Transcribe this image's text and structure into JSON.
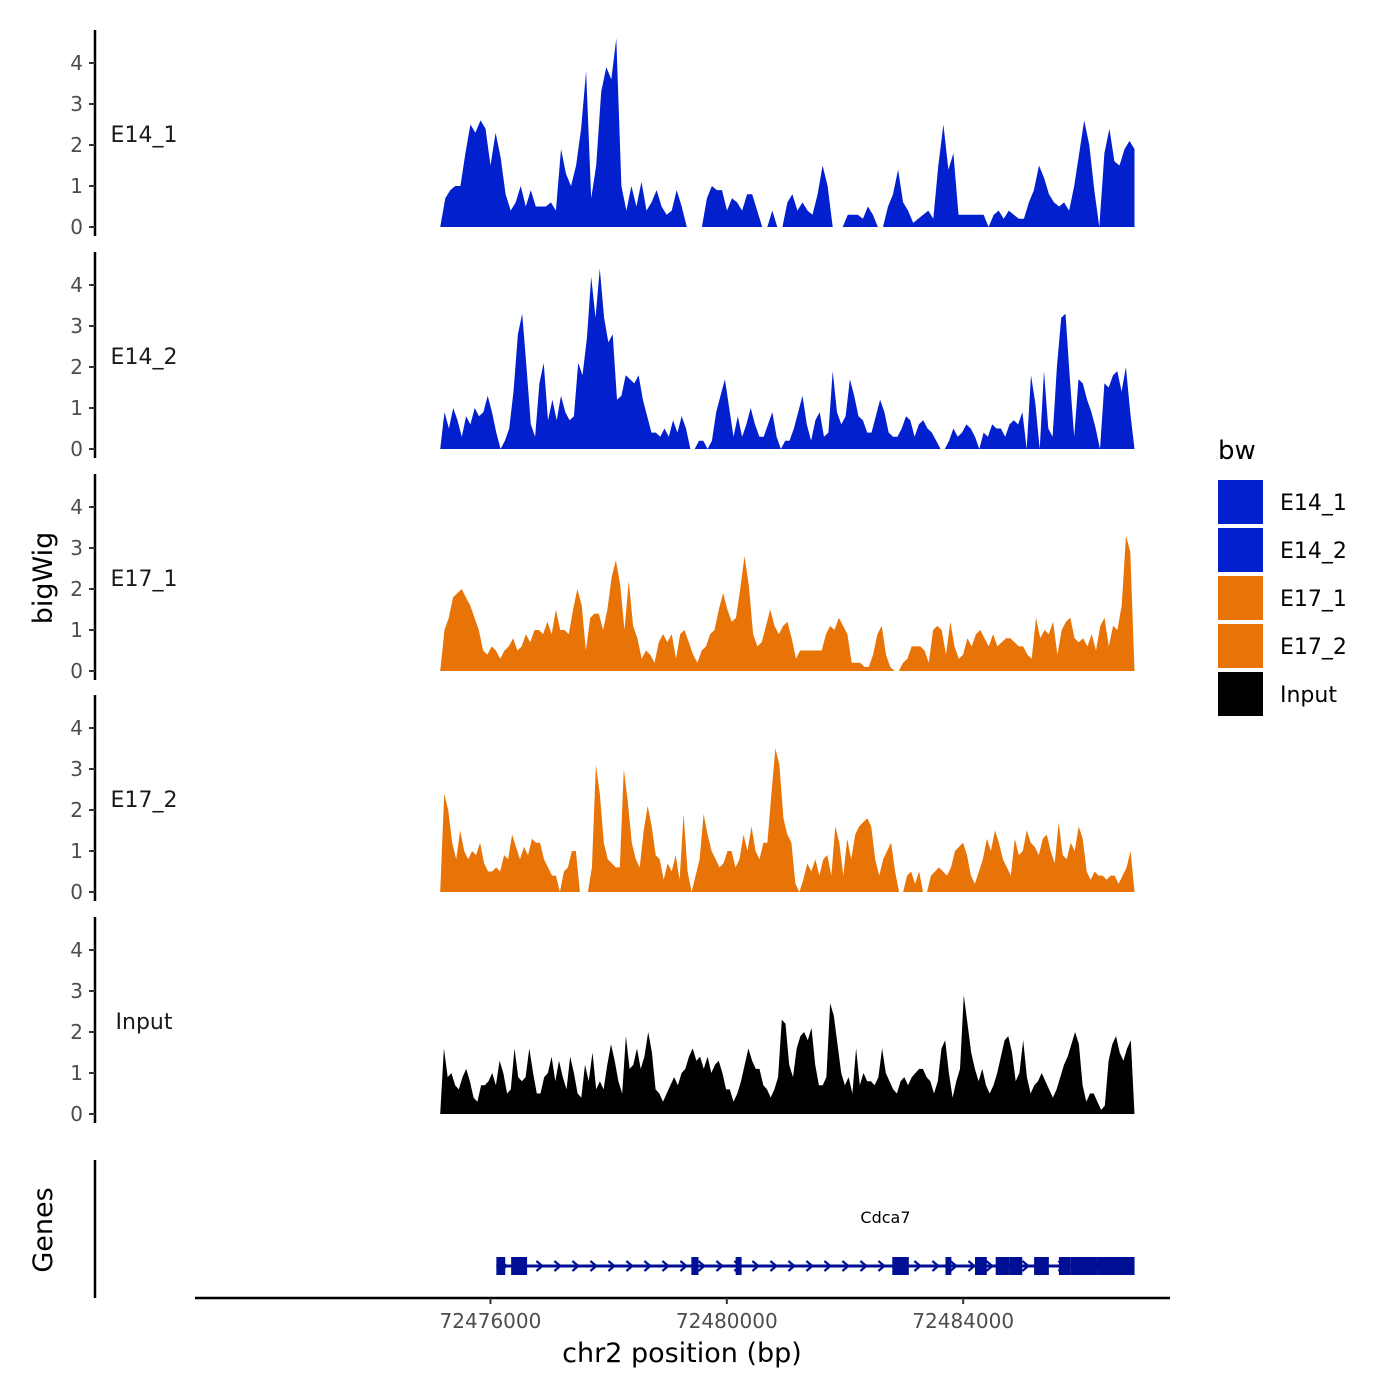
{
  "chart_data": {
    "type": "area",
    "xlabel": "chr2 position (bp)",
    "ylabel": "bigWig",
    "genes_label": "Genes",
    "xlim": [
      72471000,
      72487500
    ],
    "ylim": [
      0,
      4.8
    ],
    "x_ticks": [
      {
        "value": 72476000,
        "label": "72476000"
      },
      {
        "value": 72480000,
        "label": "72480000"
      },
      {
        "value": 72484000,
        "label": "72484000"
      }
    ],
    "y_ticks": [
      {
        "value": 0,
        "label": "0"
      },
      {
        "value": 1,
        "label": "1"
      },
      {
        "value": 2,
        "label": "2"
      },
      {
        "value": 3,
        "label": "3"
      },
      {
        "value": 4,
        "label": "4"
      }
    ],
    "data_x_range": [
      72475150,
      72486900
    ],
    "legend": {
      "title": "bw",
      "entries": [
        {
          "name": "E14_1",
          "color": "#0320cf"
        },
        {
          "name": "E14_2",
          "color": "#0320cf"
        },
        {
          "name": "E17_1",
          "color": "#e87407"
        },
        {
          "name": "E17_2",
          "color": "#e87407"
        },
        {
          "name": "Input",
          "color": "#000000"
        }
      ]
    },
    "series": [
      {
        "name": "E14_1",
        "color": "#0320cf",
        "values": [
          0,
          0.7,
          0.9,
          1.0,
          1.0,
          1.8,
          2.5,
          2.3,
          2.6,
          2.4,
          1.5,
          2.3,
          1.7,
          0.8,
          0.4,
          0.6,
          1.0,
          0.5,
          0.9,
          0.5,
          0.5,
          0.5,
          0.6,
          0.4,
          1.9,
          1.3,
          1.0,
          1.5,
          2.4,
          3.8,
          0.7,
          1.5,
          3.3,
          3.9,
          3.6,
          4.6,
          1.0,
          0.4,
          1.0,
          0.5,
          1.1,
          0.4,
          0.6,
          0.9,
          0.5,
          0.3,
          0.4,
          0.9,
          0.5,
          0,
          0,
          0,
          0,
          0.7,
          1.0,
          0.9,
          0.9,
          0.4,
          0.7,
          0.6,
          0.4,
          0.8,
          0.8,
          0.4,
          0,
          0,
          0.4,
          0,
          0,
          0.6,
          0.8,
          0.4,
          0.6,
          0.4,
          0.3,
          0.8,
          1.5,
          1.0,
          0,
          0,
          0,
          0.3,
          0.3,
          0.3,
          0.2,
          0.5,
          0.3,
          0,
          0,
          0.5,
          0.8,
          1.4,
          0.6,
          0.4,
          0.1,
          0.2,
          0.3,
          0.4,
          0.2,
          1.5,
          2.5,
          1.4,
          1.8,
          0.3,
          0.3,
          0.3,
          0.3,
          0.3,
          0.3,
          0,
          0.3,
          0.4,
          0.2,
          0.4,
          0.3,
          0.2,
          0.2,
          0.6,
          0.9,
          1.5,
          1.2,
          0.8,
          0.6,
          0.5,
          0.6,
          0.4,
          1.0,
          1.8,
          2.6,
          2.0,
          0.9,
          0,
          1.8,
          2.4,
          1.6,
          1.5,
          1.9,
          2.1,
          1.9
        ],
        "gap_below": 0.05
      },
      {
        "name": "E14_2",
        "color": "#0320cf",
        "values": [
          0,
          0.9,
          0.5,
          1.0,
          0.7,
          0.3,
          0.8,
          0.6,
          1.0,
          0.8,
          0.9,
          1.3,
          0.9,
          0.4,
          0,
          0.2,
          0.5,
          1.4,
          2.8,
          3.3,
          2.0,
          0.6,
          0.3,
          1.6,
          2.1,
          0.7,
          1.2,
          0.7,
          1.3,
          0.9,
          0.7,
          0.8,
          2.1,
          1.8,
          2.7,
          4.2,
          3.2,
          4.4,
          3.2,
          2.6,
          2.8,
          1.2,
          1.3,
          1.8,
          1.7,
          1.6,
          1.8,
          1.2,
          0.8,
          0.4,
          0.4,
          0.3,
          0.5,
          0.3,
          0.7,
          0.4,
          0.8,
          0.5,
          0,
          0,
          0.2,
          0.2,
          0,
          0.2,
          0.9,
          1.3,
          1.7,
          1.0,
          0.3,
          0.8,
          0.3,
          0.6,
          1.0,
          0.6,
          0.3,
          0.3,
          0.6,
          0.9,
          0.3,
          0,
          0.2,
          0.2,
          0.5,
          0.9,
          1.3,
          0.6,
          0.2,
          0.7,
          0.9,
          0.3,
          0.4,
          1.9,
          0.9,
          0.6,
          0.8,
          1.7,
          1.3,
          0.8,
          0.7,
          0.4,
          0.4,
          0.8,
          1.2,
          0.9,
          0.4,
          0.3,
          0.3,
          0.5,
          0.8,
          0.7,
          0.3,
          0.6,
          0.7,
          0.5,
          0.4,
          0.2,
          0,
          0,
          0.2,
          0.5,
          0.3,
          0.4,
          0.6,
          0.5,
          0.3,
          0,
          0.4,
          0.3,
          0.6,
          0.5,
          0.5,
          0.3,
          0.6,
          0.7,
          0.6,
          0.9,
          0,
          1.8,
          1.1,
          0,
          1.9,
          0.5,
          0.3,
          2.0,
          3.2,
          3.3,
          1.7,
          0.3,
          1.7,
          1.6,
          1.2,
          0.9,
          0.5,
          0,
          1.6,
          1.5,
          1.8,
          1.9,
          1.4,
          2.0,
          0.9,
          0
        ],
        "gap_below": 0.05
      },
      {
        "name": "E17_1",
        "color": "#e87407",
        "values": [
          0,
          1.0,
          1.3,
          1.8,
          1.9,
          2.0,
          1.8,
          1.6,
          1.3,
          1.0,
          0.5,
          0.4,
          0.6,
          0.5,
          0.3,
          0.5,
          0.6,
          0.8,
          0.5,
          0.6,
          0.9,
          0.7,
          1.0,
          1.0,
          0.9,
          1.2,
          0.9,
          1.5,
          1.0,
          1.0,
          0.9,
          1.5,
          2.0,
          1.6,
          0.5,
          1.3,
          1.4,
          1.4,
          1.0,
          1.5,
          2.3,
          2.7,
          2.1,
          1.0,
          2.2,
          1.1,
          0.8,
          0.3,
          0.5,
          0.4,
          0.2,
          0.7,
          0.9,
          0.7,
          0.9,
          0.3,
          0.9,
          1.0,
          0.7,
          0.4,
          0.2,
          0.5,
          0.6,
          0.9,
          1.0,
          1.5,
          1.9,
          1.5,
          1.2,
          1.3,
          2.0,
          2.8,
          2.1,
          0.9,
          0.6,
          0.7,
          1.1,
          1.5,
          1.1,
          0.9,
          1.1,
          1.2,
          0.8,
          0.3,
          0.5,
          0.5,
          0.5,
          0.5,
          0.5,
          0.5,
          0.9,
          1.1,
          1.0,
          1.3,
          1.1,
          0.9,
          0.2,
          0.2,
          0.2,
          0.1,
          0.1,
          0.4,
          0.9,
          1.1,
          0.4,
          0.1,
          0,
          0,
          0.2,
          0.3,
          0.6,
          0.6,
          0.6,
          0.5,
          0.2,
          1.0,
          1.1,
          1.0,
          0.4,
          1.2,
          0.6,
          0.3,
          0.4,
          0.8,
          0.6,
          0.9,
          1.0,
          0.8,
          0.6,
          0.9,
          0.6,
          0.7,
          0.8,
          0.8,
          0.7,
          0.6,
          0.6,
          0.4,
          0.3,
          1.3,
          0.8,
          1.0,
          0.9,
          1.2,
          0.4,
          1.0,
          1.2,
          1.3,
          0.8,
          0.7,
          0.8,
          0.6,
          0.9,
          0.5,
          1.1,
          1.3,
          0.6,
          1.1,
          1.0,
          1.6,
          3.3,
          2.9,
          0
        ],
        "gap_below": 0.05
      },
      {
        "name": "E17_2",
        "color": "#e87407",
        "values": [
          0,
          2.4,
          2.0,
          1.2,
          0.8,
          1.5,
          1.0,
          0.8,
          1.0,
          0.9,
          1.2,
          0.7,
          0.5,
          0.5,
          0.6,
          0.5,
          0.9,
          0.8,
          1.4,
          1.1,
          0.8,
          1.1,
          0.9,
          1.3,
          1.2,
          1.2,
          0.8,
          0.6,
          0.4,
          0.4,
          0,
          0.5,
          0.6,
          1.0,
          1.0,
          0,
          0,
          0,
          0.6,
          3.1,
          2.4,
          1.2,
          0.8,
          0.7,
          0.6,
          0.6,
          3.0,
          2.2,
          1.2,
          0.8,
          0.6,
          1.5,
          2.1,
          1.6,
          0.9,
          0.8,
          0.3,
          0.7,
          0.5,
          0.9,
          0.3,
          1.9,
          0.5,
          0,
          0.4,
          0.8,
          1.9,
          1.4,
          1.0,
          0.8,
          0.6,
          0.7,
          1.0,
          1.0,
          0.6,
          0.8,
          1.4,
          1.0,
          1.6,
          1.0,
          0.8,
          1.2,
          1.2,
          2.4,
          3.5,
          3.1,
          1.8,
          1.4,
          1.2,
          0.2,
          0,
          0.3,
          0.7,
          0.5,
          0.8,
          0.4,
          0.8,
          0.9,
          0.4,
          1.6,
          1.2,
          0.4,
          1.3,
          0.8,
          1.4,
          1.6,
          1.7,
          1.8,
          1.6,
          0.8,
          0.4,
          0.8,
          1.0,
          1.2,
          0.5,
          0,
          0,
          0.4,
          0.5,
          0.2,
          0.5,
          0,
          0,
          0.4,
          0.5,
          0.6,
          0.5,
          0.4,
          0.6,
          1.0,
          1.1,
          1.2,
          0.9,
          0.4,
          0.2,
          0.5,
          0.8,
          1.3,
          1.0,
          1.5,
          1.2,
          0.8,
          0.6,
          0.4,
          1.3,
          0.9,
          1.0,
          1.5,
          1.2,
          1.1,
          0.9,
          1.3,
          1.4,
          1.0,
          0.7,
          1.7,
          0.9,
          0.8,
          1.2,
          1.0,
          1.6,
          1.3,
          0.5,
          0.3,
          0.5,
          0.4,
          0.4,
          0.3,
          0.4,
          0.4,
          0.2,
          0.4,
          0.6,
          1.0,
          0
        ],
        "gap_below": 0.05
      },
      {
        "name": "Input",
        "color": "#000000",
        "values": [
          0,
          1.6,
          0.9,
          1.0,
          0.7,
          0.6,
          0.9,
          1.1,
          0.8,
          0.4,
          0.3,
          0.7,
          0.7,
          0.8,
          1.0,
          0.7,
          1.3,
          1.0,
          0.5,
          0.6,
          1.6,
          0.9,
          0.8,
          0.9,
          1.6,
          1.0,
          0.5,
          0.5,
          0.9,
          1.0,
          1.4,
          0.8,
          1.3,
          0.9,
          0.6,
          1.4,
          1.0,
          0.5,
          0.4,
          1.2,
          0.8,
          1.5,
          0.6,
          0.8,
          0.6,
          1.2,
          1.7,
          1.3,
          0.8,
          0.5,
          1.9,
          1.1,
          1.2,
          1.6,
          1.1,
          1.4,
          2.0,
          1.5,
          0.6,
          0.5,
          0.3,
          0.5,
          0.7,
          0.9,
          0.7,
          1.0,
          1.1,
          1.4,
          1.6,
          1.3,
          1.4,
          1.1,
          1.4,
          1.0,
          1.2,
          1.3,
          1.0,
          0.6,
          0.6,
          0.3,
          0.5,
          0.8,
          1.2,
          1.6,
          1.3,
          1.1,
          1.1,
          0.7,
          0.6,
          0.4,
          0.6,
          0.9,
          2.3,
          2.2,
          1.2,
          0.9,
          1.6,
          1.9,
          2.0,
          1.8,
          2.1,
          1.2,
          0.7,
          0.7,
          0.9,
          2.7,
          2.4,
          1.7,
          1.0,
          0.7,
          0.9,
          0.5,
          1.6,
          0.7,
          1.0,
          0.8,
          0.8,
          0.7,
          0.9,
          1.6,
          1.0,
          0.8,
          0.6,
          0.5,
          0.8,
          0.9,
          0.7,
          0.9,
          1.0,
          1.1,
          1.1,
          0.9,
          0.8,
          0.5,
          0.8,
          1.6,
          1.8,
          1.0,
          0.4,
          0.8,
          1.1,
          2.9,
          2.2,
          1.5,
          1.1,
          0.8,
          1.1,
          0.7,
          0.5,
          0.7,
          1.0,
          1.4,
          1.8,
          1.9,
          1.5,
          0.8,
          1.0,
          1.8,
          0.9,
          0.5,
          0.7,
          0.8,
          1.0,
          0.8,
          0.6,
          0.4,
          0.6,
          0.9,
          1.2,
          1.4,
          1.7,
          2.0,
          1.7,
          0.7,
          0.3,
          0.5,
          0.5,
          0.3,
          0.1,
          0.2,
          1.3,
          1.7,
          1.9,
          1.5,
          1.3,
          1.6,
          1.8,
          0
        ],
        "gap_below": -1
      }
    ],
    "gene_track": {
      "gene_name": "Cdca7",
      "color": "#000f94",
      "strand": "+",
      "start": 72476100,
      "end": 72486900,
      "exons": [
        [
          72476100,
          72476250
        ],
        [
          72476350,
          72476620
        ],
        [
          72479400,
          72479520
        ],
        [
          72480150,
          72480250
        ],
        [
          72482800,
          72483080
        ],
        [
          72483700,
          72483800
        ],
        [
          72484550,
          72484780
        ],
        [
          72484780,
          72485000
        ],
        [
          72485200,
          72485450
        ],
        [
          72485620,
          72485820
        ],
        [
          72486280,
          72486900
        ]
      ],
      "coding_exons": [
        [
          72485820,
          72486280
        ],
        [
          72484200,
          72484400
        ]
      ]
    }
  }
}
